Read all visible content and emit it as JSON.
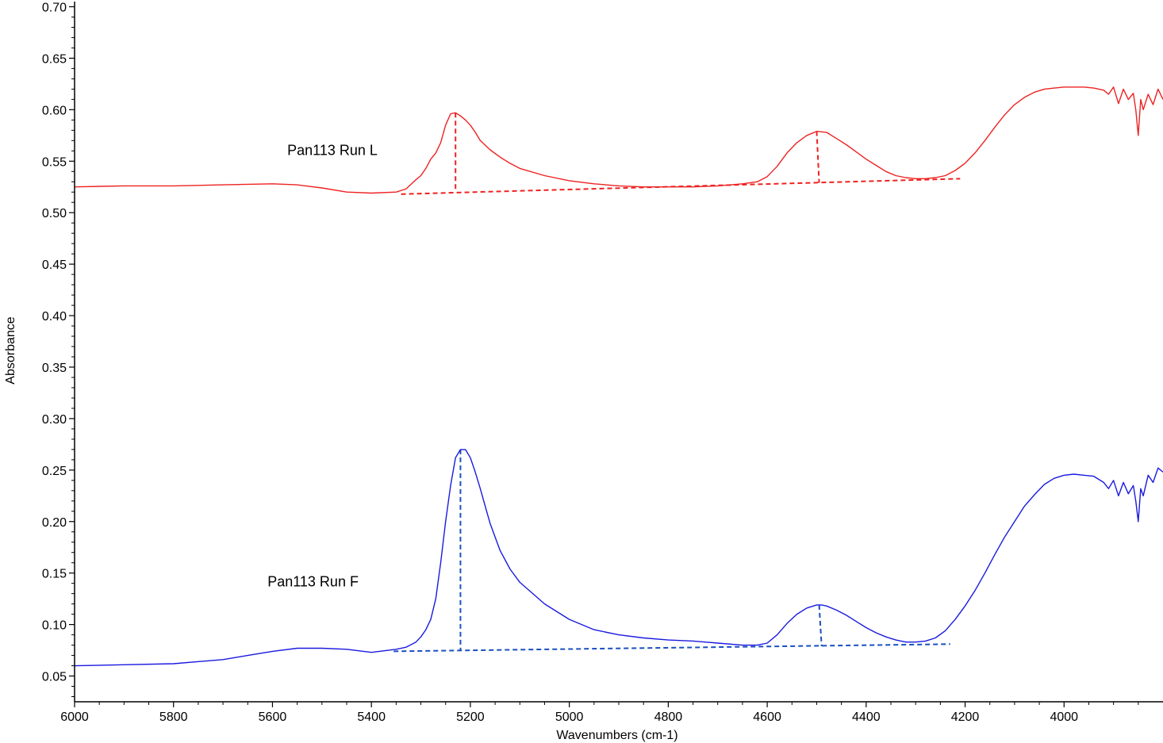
{
  "chart_data": {
    "type": "line",
    "xlabel": "Wavenumbers (cm-1)",
    "ylabel": "Absorbance",
    "xlim": [
      6000,
      3800
    ],
    "ylim": [
      0.025,
      0.705
    ],
    "x_reversed": true,
    "grid": false,
    "x_ticks": [
      "6000",
      "5800",
      "5600",
      "5400",
      "5200",
      "5000",
      "4800",
      "4600",
      "4400",
      "4200",
      "4000"
    ],
    "y_ticks": [
      "0.05",
      "0.10",
      "0.15",
      "0.20",
      "0.25",
      "0.30",
      "0.35",
      "0.40",
      "0.45",
      "0.50",
      "0.55",
      "0.60",
      "0.65",
      "0.70"
    ],
    "series": [
      {
        "name": "Pan113 Run L",
        "color": "#ee2222",
        "x": [
          6000,
          5900,
          5800,
          5700,
          5600,
          5550,
          5500,
          5450,
          5400,
          5350,
          5330,
          5310,
          5300,
          5290,
          5280,
          5270,
          5260,
          5250,
          5240,
          5230,
          5220,
          5210,
          5200,
          5190,
          5180,
          5160,
          5140,
          5120,
          5100,
          5050,
          5000,
          4950,
          4900,
          4850,
          4800,
          4750,
          4700,
          4650,
          4620,
          4600,
          4580,
          4560,
          4540,
          4520,
          4500,
          4480,
          4460,
          4440,
          4420,
          4400,
          4380,
          4360,
          4340,
          4320,
          4300,
          4280,
          4260,
          4240,
          4220,
          4200,
          4180,
          4160,
          4140,
          4120,
          4100,
          4080,
          4060,
          4040,
          4020,
          4000,
          3980,
          3960,
          3940,
          3920,
          3910,
          3900,
          3890,
          3880,
          3870,
          3860,
          3855,
          3850,
          3845,
          3840,
          3830,
          3820,
          3810,
          3800
        ],
        "y": [
          0.525,
          0.526,
          0.526,
          0.527,
          0.528,
          0.527,
          0.524,
          0.52,
          0.519,
          0.52,
          0.523,
          0.532,
          0.536,
          0.543,
          0.552,
          0.558,
          0.568,
          0.585,
          0.596,
          0.597,
          0.594,
          0.59,
          0.585,
          0.578,
          0.57,
          0.561,
          0.554,
          0.548,
          0.543,
          0.536,
          0.531,
          0.528,
          0.526,
          0.525,
          0.525,
          0.525,
          0.526,
          0.528,
          0.53,
          0.535,
          0.545,
          0.558,
          0.568,
          0.575,
          0.579,
          0.578,
          0.572,
          0.566,
          0.559,
          0.552,
          0.546,
          0.54,
          0.536,
          0.534,
          0.533,
          0.533,
          0.534,
          0.536,
          0.541,
          0.548,
          0.558,
          0.57,
          0.583,
          0.595,
          0.605,
          0.612,
          0.617,
          0.62,
          0.621,
          0.622,
          0.622,
          0.622,
          0.621,
          0.619,
          0.615,
          0.622,
          0.606,
          0.62,
          0.61,
          0.616,
          0.6,
          0.575,
          0.61,
          0.6,
          0.615,
          0.605,
          0.62,
          0.61
        ],
        "label_x": 5570,
        "label_y": 0.556
      },
      {
        "name": "Pan113 Run F",
        "color": "#1a1ae0",
        "x": [
          6000,
          5900,
          5800,
          5700,
          5650,
          5600,
          5550,
          5500,
          5450,
          5400,
          5350,
          5330,
          5310,
          5300,
          5290,
          5280,
          5270,
          5260,
          5250,
          5240,
          5230,
          5220,
          5210,
          5200,
          5190,
          5180,
          5170,
          5160,
          5140,
          5120,
          5100,
          5050,
          5000,
          4950,
          4900,
          4850,
          4800,
          4750,
          4700,
          4650,
          4620,
          4600,
          4580,
          4560,
          4540,
          4520,
          4500,
          4490,
          4480,
          4460,
          4440,
          4420,
          4400,
          4380,
          4360,
          4340,
          4320,
          4300,
          4280,
          4260,
          4240,
          4220,
          4200,
          4180,
          4160,
          4140,
          4120,
          4100,
          4080,
          4060,
          4040,
          4020,
          4000,
          3980,
          3960,
          3940,
          3920,
          3910,
          3900,
          3890,
          3880,
          3870,
          3860,
          3855,
          3850,
          3845,
          3840,
          3830,
          3820,
          3810,
          3800
        ],
        "y": [
          0.06,
          0.061,
          0.062,
          0.066,
          0.07,
          0.074,
          0.077,
          0.077,
          0.076,
          0.073,
          0.076,
          0.078,
          0.083,
          0.088,
          0.095,
          0.105,
          0.125,
          0.16,
          0.2,
          0.235,
          0.262,
          0.27,
          0.27,
          0.262,
          0.248,
          0.232,
          0.215,
          0.198,
          0.172,
          0.154,
          0.141,
          0.12,
          0.105,
          0.095,
          0.09,
          0.087,
          0.085,
          0.084,
          0.082,
          0.08,
          0.08,
          0.082,
          0.09,
          0.101,
          0.11,
          0.116,
          0.119,
          0.119,
          0.118,
          0.114,
          0.109,
          0.103,
          0.097,
          0.092,
          0.088,
          0.085,
          0.083,
          0.083,
          0.084,
          0.087,
          0.094,
          0.105,
          0.118,
          0.133,
          0.15,
          0.168,
          0.185,
          0.2,
          0.215,
          0.226,
          0.236,
          0.242,
          0.245,
          0.246,
          0.245,
          0.244,
          0.238,
          0.232,
          0.24,
          0.225,
          0.238,
          0.227,
          0.235,
          0.22,
          0.2,
          0.232,
          0.225,
          0.245,
          0.238,
          0.252,
          0.248
        ],
        "label_x": 5610,
        "label_y": 0.137
      }
    ],
    "annotations": [
      {
        "type": "baseline",
        "color": "#ee2222",
        "x1": 5340,
        "y1": 0.518,
        "x2": 4210,
        "y2": 0.533
      },
      {
        "type": "drop",
        "color": "#ee2222",
        "x1": 5230,
        "y1": 0.597,
        "x2": 5230,
        "y2": 0.521
      },
      {
        "type": "drop",
        "color": "#ee2222",
        "x1": 4500,
        "y1": 0.579,
        "x2": 4495,
        "y2": 0.529
      },
      {
        "type": "baseline",
        "color": "#1a4fbf",
        "x1": 5355,
        "y1": 0.074,
        "x2": 4230,
        "y2": 0.081
      },
      {
        "type": "drop",
        "color": "#1a4fbf",
        "x1": 5220,
        "y1": 0.27,
        "x2": 5220,
        "y2": 0.075
      },
      {
        "type": "drop",
        "color": "#1a4fbf",
        "x1": 4495,
        "y1": 0.119,
        "x2": 4490,
        "y2": 0.079
      }
    ]
  }
}
